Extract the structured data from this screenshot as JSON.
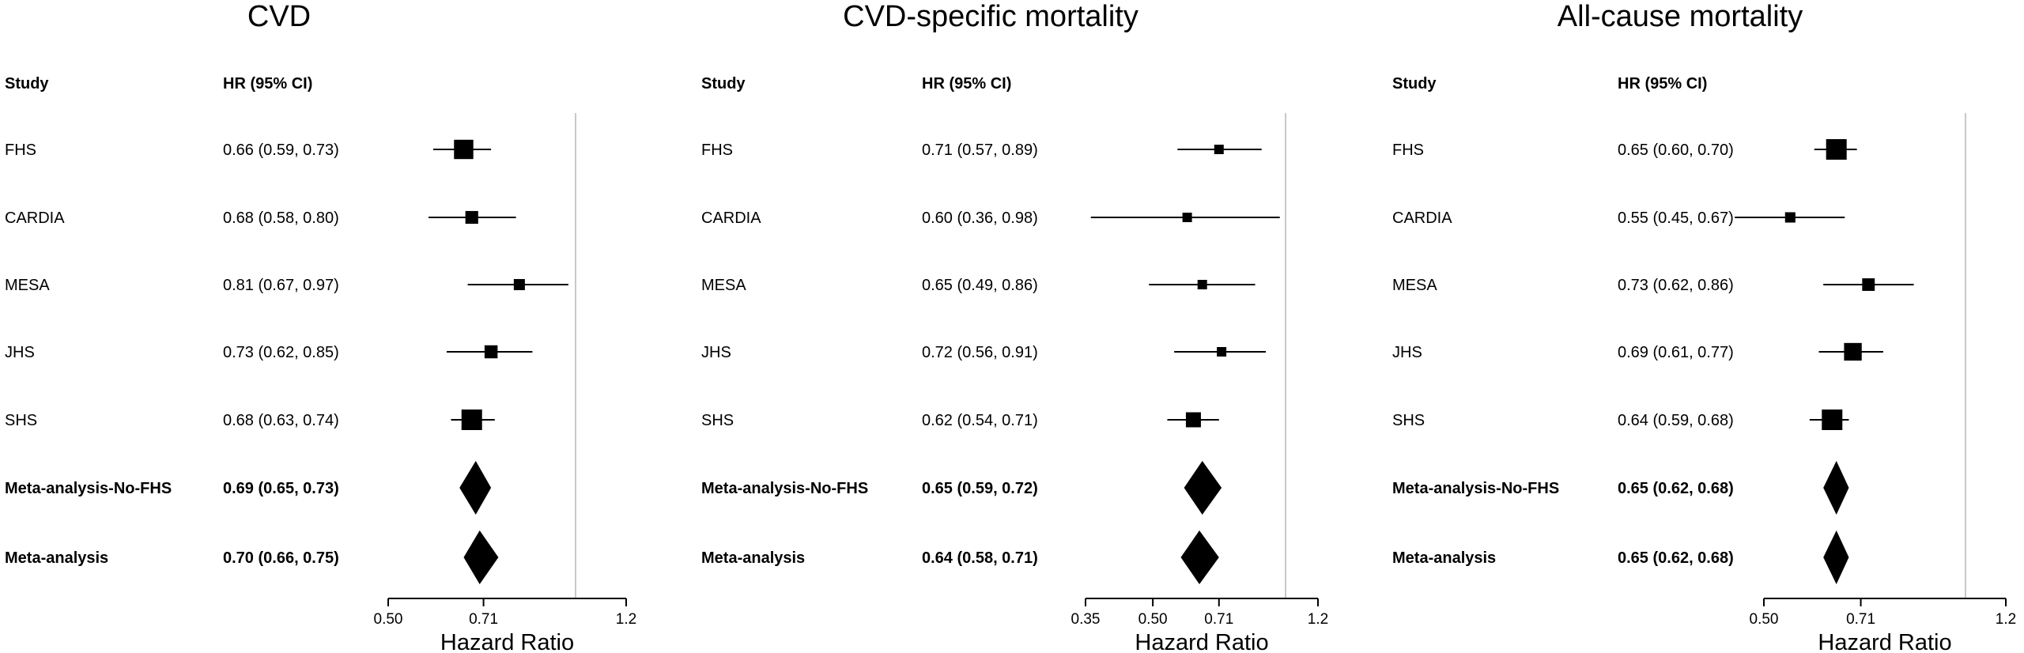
{
  "chart_data": [
    {
      "type": "forest",
      "title": "CVD",
      "col_study": "Study",
      "col_hr": "HR (95% CI)",
      "xlabel": "Hazard Ratio",
      "x_scale": "log",
      "xlim": [
        0.5,
        1.2
      ],
      "xticks": [
        "0.50",
        "0.71",
        "1.2"
      ],
      "reference_line": 1.0,
      "rows": [
        {
          "study": "FHS",
          "hr_text": "0.66 (0.59, 0.73)",
          "hr": 0.66,
          "lo": 0.59,
          "hi": 0.73,
          "summary": false
        },
        {
          "study": "CARDIA",
          "hr_text": "0.68 (0.58, 0.80)",
          "hr": 0.68,
          "lo": 0.58,
          "hi": 0.8,
          "summary": false
        },
        {
          "study": "MESA",
          "hr_text": "0.81 (0.67, 0.97)",
          "hr": 0.81,
          "lo": 0.67,
          "hi": 0.97,
          "summary": false
        },
        {
          "study": "JHS",
          "hr_text": "0.73 (0.62, 0.85)",
          "hr": 0.73,
          "lo": 0.62,
          "hi": 0.85,
          "summary": false
        },
        {
          "study": "SHS",
          "hr_text": "0.68 (0.63, 0.74)",
          "hr": 0.68,
          "lo": 0.63,
          "hi": 0.74,
          "summary": false
        },
        {
          "study": "Meta-analysis-No-FHS",
          "hr_text": "0.69 (0.65, 0.73)",
          "hr": 0.69,
          "lo": 0.65,
          "hi": 0.73,
          "summary": true
        },
        {
          "study": "Meta-analysis",
          "hr_text": "0.70 (0.66, 0.75)",
          "hr": 0.7,
          "lo": 0.66,
          "hi": 0.75,
          "summary": true
        }
      ]
    },
    {
      "type": "forest",
      "title": "CVD-specific mortality",
      "col_study": "Study",
      "col_hr": "HR (95% CI)",
      "xlabel": "Hazard Ratio",
      "x_scale": "log",
      "xlim": [
        0.35,
        1.2
      ],
      "xticks": [
        "0.35",
        "0.50",
        "0.71",
        "1.2"
      ],
      "reference_line": 1.0,
      "rows": [
        {
          "study": "FHS",
          "hr_text": "0.71 (0.57, 0.89)",
          "hr": 0.71,
          "lo": 0.57,
          "hi": 0.89,
          "summary": false
        },
        {
          "study": "CARDIA",
          "hr_text": "0.60 (0.36, 0.98)",
          "hr": 0.6,
          "lo": 0.36,
          "hi": 0.98,
          "summary": false
        },
        {
          "study": "MESA",
          "hr_text": "0.65 (0.49, 0.86)",
          "hr": 0.65,
          "lo": 0.49,
          "hi": 0.86,
          "summary": false
        },
        {
          "study": "JHS",
          "hr_text": "0.72 (0.56, 0.91)",
          "hr": 0.72,
          "lo": 0.56,
          "hi": 0.91,
          "summary": false
        },
        {
          "study": "SHS",
          "hr_text": "0.62 (0.54, 0.71)",
          "hr": 0.62,
          "lo": 0.54,
          "hi": 0.71,
          "summary": false
        },
        {
          "study": "Meta-analysis-No-FHS",
          "hr_text": "0.65 (0.59, 0.72)",
          "hr": 0.65,
          "lo": 0.59,
          "hi": 0.72,
          "summary": true
        },
        {
          "study": "Meta-analysis",
          "hr_text": "0.64 (0.58, 0.71)",
          "hr": 0.64,
          "lo": 0.58,
          "hi": 0.71,
          "summary": true
        }
      ]
    },
    {
      "type": "forest",
      "title": "All-cause mortality",
      "col_study": "Study",
      "col_hr": "HR (95% CI)",
      "xlabel": "Hazard Ratio",
      "x_scale": "log",
      "xlim": [
        0.5,
        1.2
      ],
      "xticks": [
        "0.50",
        "0.71",
        "1.2"
      ],
      "reference_line": 1.0,
      "rows": [
        {
          "study": "FHS",
          "hr_text": "0.65 (0.60, 0.70)",
          "hr": 0.65,
          "lo": 0.6,
          "hi": 0.7,
          "summary": false
        },
        {
          "study": "CARDIA",
          "hr_text": "0.55 (0.45, 0.67)",
          "hr": 0.55,
          "lo": 0.45,
          "hi": 0.67,
          "summary": false
        },
        {
          "study": "MESA",
          "hr_text": "0.73 (0.62, 0.86)",
          "hr": 0.73,
          "lo": 0.62,
          "hi": 0.86,
          "summary": false
        },
        {
          "study": "JHS",
          "hr_text": "0.69 (0.61, 0.77)",
          "hr": 0.69,
          "lo": 0.61,
          "hi": 0.77,
          "summary": false
        },
        {
          "study": "SHS",
          "hr_text": "0.64 (0.59, 0.68)",
          "hr": 0.64,
          "lo": 0.59,
          "hi": 0.68,
          "summary": false
        },
        {
          "study": "Meta-analysis-No-FHS",
          "hr_text": "0.65 (0.62, 0.68)",
          "hr": 0.65,
          "lo": 0.62,
          "hi": 0.68,
          "summary": true
        },
        {
          "study": "Meta-analysis",
          "hr_text": "0.65 (0.62, 0.68)",
          "hr": 0.65,
          "lo": 0.62,
          "hi": 0.68,
          "summary": true
        }
      ]
    }
  ]
}
